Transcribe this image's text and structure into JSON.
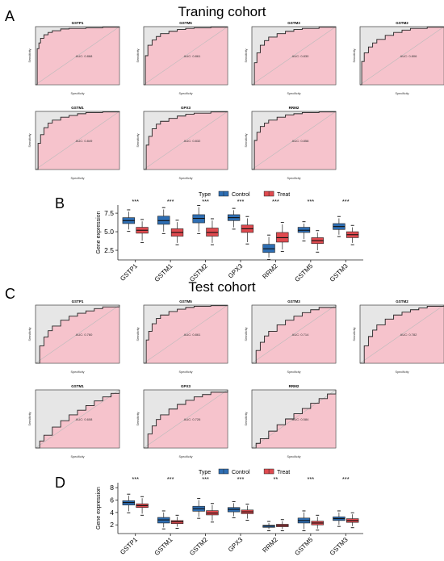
{
  "figure": {
    "panels": [
      {
        "letter": "A",
        "title": "Traning cohort"
      },
      {
        "letter": "B",
        "title": ""
      },
      {
        "letter": "C",
        "title": "Test cohort"
      },
      {
        "letter": "D",
        "title": ""
      }
    ]
  },
  "colors": {
    "roc_fill": "#f6c3cc",
    "roc_gray": "#e6e6e6",
    "roc_line": "#222222",
    "control": "#2e6eb3",
    "treat": "#e04a4f",
    "diag": "#bbbbbb"
  },
  "chart_data": [
    {
      "type": "line",
      "group": "Traning cohort",
      "xlabel": "Specificity",
      "ylabel": "Sensitivity",
      "series": [
        {
          "name": "GSTP1",
          "auc_label": "AUC: 0.868",
          "x": [
            0,
            0.02,
            0.04,
            0.06,
            0.1,
            0.15,
            0.2,
            0.3,
            0.4,
            0.6,
            0.8,
            1
          ],
          "y": [
            0,
            0.62,
            0.72,
            0.8,
            0.86,
            0.9,
            0.93,
            0.96,
            0.97,
            0.98,
            0.99,
            1
          ]
        },
        {
          "name": "GSTM5",
          "auc_label": "AUC: 0.861",
          "x": [
            0,
            0.02,
            0.05,
            0.1,
            0.15,
            0.2,
            0.3,
            0.4,
            0.5,
            0.6,
            0.8,
            1
          ],
          "y": [
            0,
            0.5,
            0.68,
            0.77,
            0.83,
            0.88,
            0.92,
            0.95,
            0.97,
            0.98,
            0.99,
            1
          ]
        },
        {
          "name": "GSTM3",
          "auc_label": "AUC: 0.830",
          "x": [
            0,
            0.03,
            0.06,
            0.1,
            0.15,
            0.2,
            0.3,
            0.4,
            0.5,
            0.6,
            0.8,
            1
          ],
          "y": [
            0,
            0.38,
            0.55,
            0.68,
            0.76,
            0.82,
            0.88,
            0.92,
            0.95,
            0.97,
            0.99,
            1
          ]
        },
        {
          "name": "GSTM2",
          "auc_label": "AUC: 0.806",
          "x": [
            0,
            0.02,
            0.05,
            0.1,
            0.15,
            0.2,
            0.3,
            0.4,
            0.5,
            0.6,
            0.8,
            1
          ],
          "y": [
            0,
            0.4,
            0.55,
            0.65,
            0.72,
            0.78,
            0.85,
            0.9,
            0.94,
            0.97,
            0.99,
            1
          ]
        },
        {
          "name": "GSTM1",
          "auc_label": "AUC: 0.849",
          "x": [
            0,
            0.03,
            0.06,
            0.1,
            0.15,
            0.2,
            0.3,
            0.4,
            0.5,
            0.6,
            0.8,
            1
          ],
          "y": [
            0,
            0.45,
            0.6,
            0.72,
            0.8,
            0.85,
            0.9,
            0.93,
            0.96,
            0.98,
            0.99,
            1
          ]
        },
        {
          "name": "GPX3",
          "auc_label": "AUC: 0.832",
          "x": [
            0,
            0.03,
            0.06,
            0.1,
            0.15,
            0.2,
            0.3,
            0.4,
            0.5,
            0.6,
            0.8,
            1
          ],
          "y": [
            0,
            0.42,
            0.57,
            0.7,
            0.78,
            0.83,
            0.88,
            0.92,
            0.95,
            0.97,
            0.99,
            1
          ]
        },
        {
          "name": "RRM2",
          "auc_label": "AUC: 0.858",
          "x": [
            0,
            0.03,
            0.06,
            0.1,
            0.15,
            0.2,
            0.3,
            0.4,
            0.5,
            0.6,
            0.8,
            1
          ],
          "y": [
            0,
            0.5,
            0.64,
            0.74,
            0.8,
            0.85,
            0.9,
            0.94,
            0.96,
            0.98,
            0.99,
            1
          ]
        }
      ]
    },
    {
      "type": "box",
      "group": "Traning cohort",
      "xlabel": "",
      "ylabel": "Gene expression",
      "legend_title": "Type",
      "legend_position": "top",
      "ylim": [
        1.2,
        8.6
      ],
      "yticks": [
        2.5,
        5.0,
        7.5
      ],
      "categories": [
        "GSTP1",
        "GSTM1",
        "GSTM2",
        "GPX3",
        "RRM2",
        "GSTM5",
        "GSTM3"
      ],
      "significance": [
        "***",
        "***",
        "***",
        "***",
        "***",
        "***",
        "***"
      ],
      "series": [
        {
          "name": "Control",
          "boxes": [
            {
              "min": 5.3,
              "q1": 6.1,
              "median": 6.5,
              "q3": 6.9,
              "max": 7.7
            },
            {
              "min": 5.0,
              "q1": 6.0,
              "median": 6.5,
              "q3": 7.1,
              "max": 8.0
            },
            {
              "min": 5.0,
              "q1": 6.2,
              "median": 6.8,
              "q3": 7.3,
              "max": 8.3
            },
            {
              "min": 5.6,
              "q1": 6.5,
              "median": 6.9,
              "q3": 7.3,
              "max": 7.9
            },
            {
              "min": 1.5,
              "q1": 2.2,
              "median": 2.7,
              "q3": 3.3,
              "max": 4.3
            },
            {
              "min": 4.0,
              "q1": 4.9,
              "median": 5.2,
              "q3": 5.6,
              "max": 6.1
            },
            {
              "min": 4.6,
              "q1": 5.3,
              "median": 5.7,
              "q3": 6.1,
              "max": 6.8
            }
          ]
        },
        {
          "name": "Treat",
          "boxes": [
            {
              "min": 3.8,
              "q1": 4.8,
              "median": 5.2,
              "q3": 5.6,
              "max": 6.4
            },
            {
              "min": 3.5,
              "q1": 4.4,
              "median": 4.9,
              "q3": 5.4,
              "max": 6.3
            },
            {
              "min": 3.5,
              "q1": 4.4,
              "median": 4.9,
              "q3": 5.5,
              "max": 6.5
            },
            {
              "min": 3.6,
              "q1": 4.9,
              "median": 5.4,
              "q3": 5.9,
              "max": 6.8
            },
            {
              "min": 2.6,
              "q1": 3.6,
              "median": 4.2,
              "q3": 4.9,
              "max": 6.0
            },
            {
              "min": 2.5,
              "q1": 3.4,
              "median": 3.8,
              "q3": 4.2,
              "max": 4.9
            },
            {
              "min": 3.5,
              "q1": 4.2,
              "median": 4.6,
              "q3": 5.0,
              "max": 5.6
            }
          ]
        }
      ]
    },
    {
      "type": "line",
      "group": "Test cohort",
      "xlabel": "Specificity",
      "ylabel": "Sensitivity",
      "series": [
        {
          "name": "GSTP1",
          "auc_label": "AUC: 0.760",
          "x": [
            0,
            0.05,
            0.1,
            0.15,
            0.2,
            0.3,
            0.4,
            0.5,
            0.6,
            0.7,
            0.8,
            1
          ],
          "y": [
            0,
            0.3,
            0.45,
            0.56,
            0.64,
            0.74,
            0.81,
            0.86,
            0.9,
            0.94,
            0.97,
            1
          ]
        },
        {
          "name": "GSTM5",
          "auc_label": "AUC: 0.861",
          "x": [
            0,
            0.03,
            0.06,
            0.1,
            0.15,
            0.2,
            0.3,
            0.4,
            0.5,
            0.6,
            0.8,
            1
          ],
          "y": [
            0,
            0.4,
            0.55,
            0.68,
            0.77,
            0.83,
            0.89,
            0.93,
            0.96,
            0.98,
            0.99,
            1
          ]
        },
        {
          "name": "GSTM3",
          "auc_label": "AUC: 0.714",
          "x": [
            0,
            0.05,
            0.1,
            0.15,
            0.2,
            0.3,
            0.4,
            0.5,
            0.6,
            0.7,
            0.8,
            1
          ],
          "y": [
            0,
            0.22,
            0.36,
            0.47,
            0.55,
            0.66,
            0.74,
            0.81,
            0.87,
            0.92,
            0.96,
            1
          ]
        },
        {
          "name": "GSTM2",
          "auc_label": "AUC: 0.782",
          "x": [
            0,
            0.05,
            0.1,
            0.15,
            0.2,
            0.3,
            0.4,
            0.5,
            0.6,
            0.7,
            0.8,
            1
          ],
          "y": [
            0,
            0.3,
            0.46,
            0.57,
            0.66,
            0.76,
            0.83,
            0.88,
            0.92,
            0.95,
            0.98,
            1
          ]
        },
        {
          "name": "GSTM1",
          "auc_label": "AUC: 0.608",
          "x": [
            0,
            0.05,
            0.1,
            0.2,
            0.3,
            0.4,
            0.5,
            0.6,
            0.7,
            0.8,
            0.9,
            1
          ],
          "y": [
            0,
            0.12,
            0.22,
            0.36,
            0.47,
            0.57,
            0.65,
            0.73,
            0.81,
            0.88,
            0.94,
            1
          ]
        },
        {
          "name": "GPX3",
          "auc_label": "AUC: 0.726",
          "x": [
            0,
            0.05,
            0.1,
            0.15,
            0.2,
            0.3,
            0.4,
            0.5,
            0.6,
            0.7,
            0.8,
            1
          ],
          "y": [
            0,
            0.24,
            0.38,
            0.49,
            0.57,
            0.67,
            0.75,
            0.82,
            0.88,
            0.92,
            0.96,
            1
          ]
        },
        {
          "name": "RRM2",
          "auc_label": "AUC: 0.584",
          "x": [
            0,
            0.05,
            0.1,
            0.2,
            0.3,
            0.4,
            0.5,
            0.6,
            0.7,
            0.8,
            0.9,
            1
          ],
          "y": [
            0,
            0.08,
            0.16,
            0.29,
            0.4,
            0.5,
            0.59,
            0.68,
            0.77,
            0.85,
            0.93,
            1
          ]
        }
      ]
    },
    {
      "type": "box",
      "group": "Test cohort",
      "xlabel": "",
      "ylabel": "Gene expression",
      "legend_title": "Type",
      "legend_position": "top",
      "ylim": [
        0.6,
        8.8
      ],
      "yticks": [
        2,
        4,
        6,
        8
      ],
      "categories": [
        "GSTP1",
        "GSTM1",
        "GSTM2",
        "GPX3",
        "RRM2",
        "GSTM5",
        "GSTM3"
      ],
      "significance": [
        "***",
        "***",
        "***",
        "***",
        "**",
        "***",
        "***"
      ],
      "series": [
        {
          "name": "Control",
          "boxes": [
            {
              "min": 4.2,
              "q1": 5.2,
              "median": 5.6,
              "q3": 5.9,
              "max": 6.7
            },
            {
              "min": 1.6,
              "q1": 2.3,
              "median": 2.8,
              "q3": 3.2,
              "max": 4.0
            },
            {
              "min": 3.3,
              "q1": 4.2,
              "median": 4.6,
              "q3": 5.0,
              "max": 6.0
            },
            {
              "min": 3.4,
              "q1": 4.1,
              "median": 4.5,
              "q3": 4.8,
              "max": 5.5
            },
            {
              "min": 1.3,
              "q1": 1.6,
              "median": 1.8,
              "q3": 1.95,
              "max": 2.3
            },
            {
              "min": 1.3,
              "q1": 2.3,
              "median": 2.7,
              "q3": 3.1,
              "max": 4.0
            },
            {
              "min": 2.0,
              "q1": 2.7,
              "median": 3.0,
              "q3": 3.3,
              "max": 4.0
            }
          ]
        },
        {
          "name": "Treat",
          "boxes": [
            {
              "min": 3.8,
              "q1": 4.8,
              "median": 5.1,
              "q3": 5.4,
              "max": 6.3
            },
            {
              "min": 1.7,
              "q1": 2.2,
              "median": 2.5,
              "q3": 2.7,
              "max": 3.3
            },
            {
              "min": 2.7,
              "q1": 3.6,
              "median": 3.9,
              "q3": 4.3,
              "max": 5.2
            },
            {
              "min": 3.0,
              "q1": 3.8,
              "median": 4.1,
              "q3": 4.4,
              "max": 5.1
            },
            {
              "min": 1.3,
              "q1": 1.7,
              "median": 1.9,
              "q3": 2.1,
              "max": 2.6
            },
            {
              "min": 1.4,
              "q1": 2.0,
              "median": 2.3,
              "q3": 2.6,
              "max": 3.3
            },
            {
              "min": 1.8,
              "q1": 2.4,
              "median": 2.7,
              "q3": 3.0,
              "max": 3.7
            }
          ]
        }
      ]
    }
  ]
}
